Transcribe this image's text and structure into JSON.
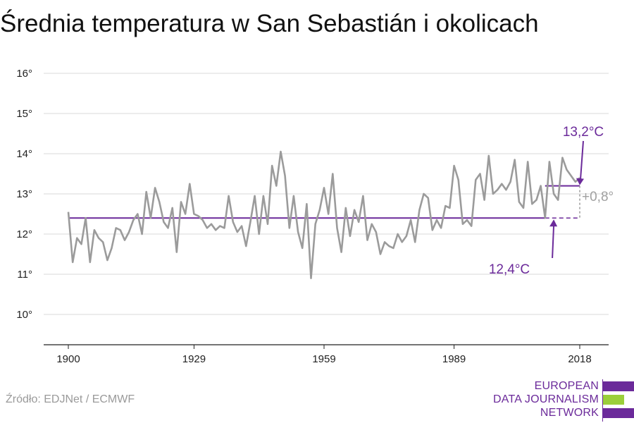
{
  "title": "Średnia temperatura w San Sebastián i okolicach",
  "source": "Źródło: EDJNet / ECMWF",
  "logo": {
    "lines": [
      "EUROPEAN",
      "DATA JOURNALISM",
      "NETWORK"
    ]
  },
  "colors": {
    "series": "#9b9b9b",
    "purple": "#6b2a9a",
    "grid": "#d9d9d9",
    "logo_green": "#9bcf3a"
  },
  "chart_data": {
    "type": "line",
    "title": "Średnia temperatura w San Sebastián i okolicach",
    "xlabel": "",
    "ylabel": "",
    "xlim": [
      1900,
      2018
    ],
    "ylim": [
      9.3,
      16.3
    ],
    "x_ticks": [
      1900,
      1929,
      1959,
      1989,
      2018
    ],
    "x_tick_labels": [
      "1900",
      "1929",
      "1959",
      "1989",
      "2018"
    ],
    "y_ticks": [
      10,
      11,
      12,
      13,
      14,
      15,
      16
    ],
    "y_tick_labels": [
      "10°",
      "11°",
      "12°",
      "13°",
      "14°",
      "15°",
      "16°"
    ],
    "grid": true,
    "series": [
      {
        "x": [
          1900,
          1901,
          1902,
          1903,
          1904,
          1905,
          1906,
          1907,
          1908,
          1909,
          1910,
          1911,
          1912,
          1913,
          1914,
          1915,
          1916,
          1917,
          1918,
          1919,
          1920,
          1921,
          1922,
          1923,
          1924,
          1925,
          1926,
          1927,
          1928,
          1929,
          1930,
          1931,
          1932,
          1933,
          1934,
          1935,
          1936,
          1937,
          1938,
          1939,
          1940,
          1941,
          1942,
          1943,
          1944,
          1945,
          1946,
          1947,
          1948,
          1949,
          1950,
          1951,
          1952,
          1953,
          1954,
          1955,
          1956,
          1957,
          1958,
          1959,
          1960,
          1961,
          1962,
          1963,
          1964,
          1965,
          1966,
          1967,
          1968,
          1969,
          1970,
          1971,
          1972,
          1973,
          1974,
          1975,
          1976,
          1977,
          1978,
          1979,
          1980,
          1981,
          1982,
          1983,
          1984,
          1985,
          1986,
          1987,
          1988,
          1989,
          1990,
          1991,
          1992,
          1993,
          1994,
          1995,
          1996,
          1997,
          1998,
          1999,
          2000,
          2001,
          2002,
          2003,
          2004,
          2005,
          2006,
          2007,
          2008,
          2009,
          2010,
          2011,
          2012,
          2013,
          2014,
          2015,
          2016,
          2017,
          2018
        ],
        "values": [
          12.55,
          11.3,
          11.9,
          11.75,
          12.4,
          11.3,
          12.1,
          11.9,
          11.8,
          11.35,
          11.65,
          12.15,
          12.1,
          11.85,
          12.05,
          12.35,
          12.5,
          12.0,
          13.05,
          12.4,
          13.15,
          12.8,
          12.3,
          12.15,
          12.65,
          11.55,
          12.8,
          12.5,
          13.25,
          12.5,
          12.45,
          12.35,
          12.15,
          12.25,
          12.1,
          12.2,
          12.15,
          12.95,
          12.3,
          12.05,
          12.2,
          11.7,
          12.3,
          12.95,
          12.0,
          12.95,
          12.25,
          13.7,
          13.2,
          14.05,
          13.45,
          12.15,
          12.95,
          12.05,
          11.65,
          12.75,
          10.9,
          12.25,
          12.6,
          13.15,
          12.5,
          13.5,
          12.15,
          11.55,
          12.65,
          11.95,
          12.6,
          12.3,
          12.95,
          11.85,
          12.25,
          12.05,
          11.5,
          11.8,
          11.7,
          11.65,
          12.0,
          11.8,
          11.95,
          12.35,
          11.8,
          12.6,
          13.0,
          12.9,
          12.1,
          12.35,
          12.15,
          12.7,
          12.65,
          13.7,
          13.35,
          12.25,
          12.35,
          12.2,
          13.35,
          13.5,
          12.85,
          13.95,
          13.0,
          13.1,
          13.25,
          13.1,
          13.3,
          13.85,
          12.8,
          12.65,
          13.8,
          12.75,
          12.85,
          13.2,
          12.4,
          13.8,
          13.0,
          12.85,
          13.9,
          13.6,
          13.45,
          13.3,
          13.4
        ]
      }
    ],
    "reference_lines": [
      {
        "label": "12,4°C",
        "value": 12.4,
        "x_from": 1900,
        "x_to": 2010,
        "dashed_to": 2018
      },
      {
        "label": "13,2°C",
        "value": 13.2,
        "x_from": 2010,
        "x_to": 2018
      }
    ],
    "difference_label": "+0,8°"
  }
}
